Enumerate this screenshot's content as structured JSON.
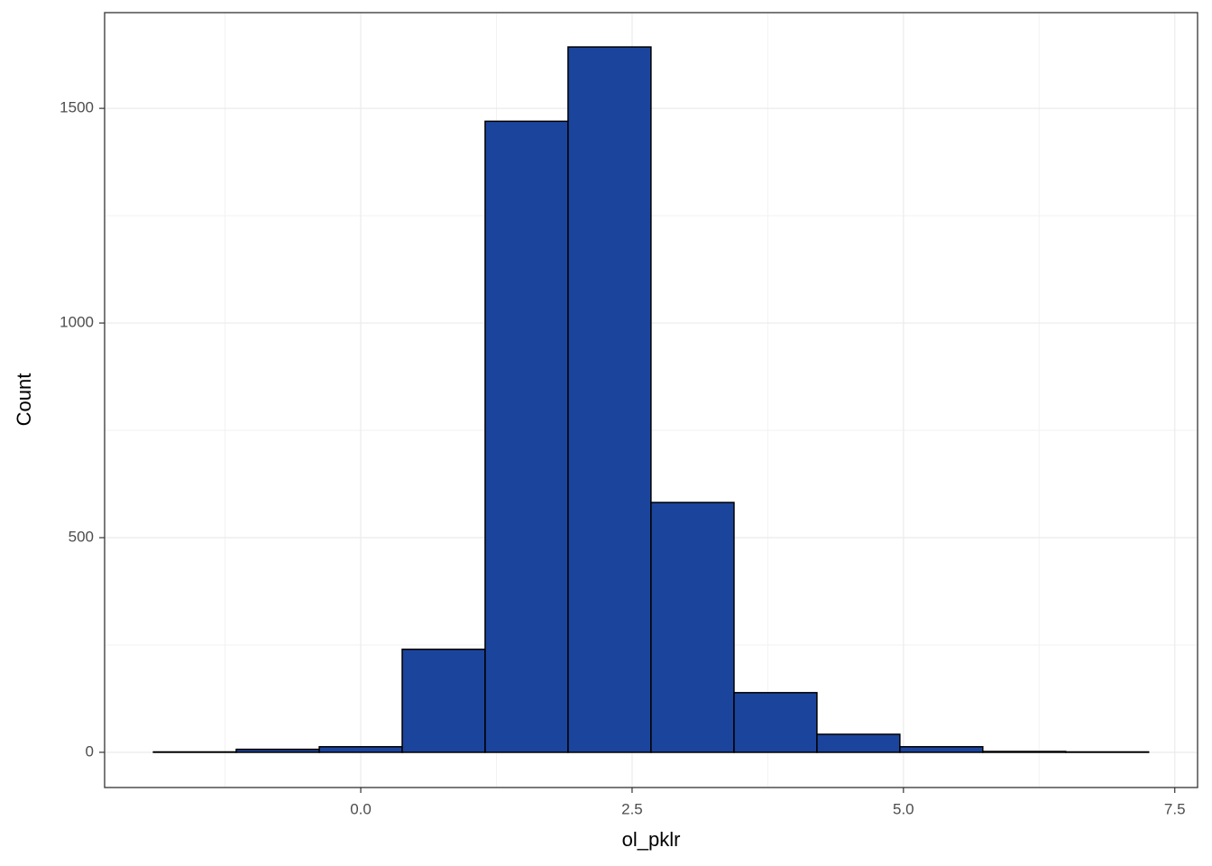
{
  "chart_data": {
    "type": "histogram",
    "x_label": "ol_pklr",
    "y_label": "Count",
    "bins": [
      -1.91,
      -1.147,
      -0.382,
      0.382,
      1.146,
      1.91,
      2.674,
      3.439,
      4.203,
      4.967,
      5.731,
      6.495,
      7.259
    ],
    "values": [
      1,
      7,
      13,
      240,
      1470,
      1643,
      582,
      139,
      42,
      13,
      2,
      1
    ],
    "color": "#1b449c",
    "edge_color": "#000000",
    "xlim": [
      -2.36,
      7.71
    ],
    "ylim": [
      -82,
      1723
    ],
    "xticks": [
      {
        "value": 0,
        "label": "0.0"
      },
      2.5,
      {
        "value": 5,
        "label": "5.0"
      },
      7.5
    ],
    "yticks": [
      0,
      500,
      1000,
      1500
    ],
    "grid": true
  }
}
